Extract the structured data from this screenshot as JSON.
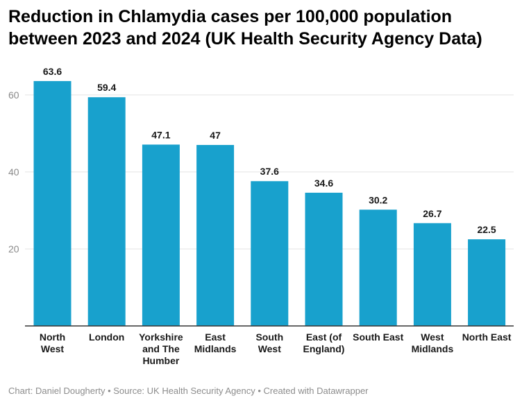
{
  "chart_data": {
    "type": "bar",
    "title": "Reduction in Chlamydia cases per 100,000 population between 2023 and 2024 (UK Health Security Agency Data)",
    "categories": [
      [
        "North",
        "West"
      ],
      [
        "London"
      ],
      [
        "Yorkshire",
        "and The",
        "Humber"
      ],
      [
        "East",
        "Midlands"
      ],
      [
        "South",
        "West"
      ],
      [
        "East (of",
        "England)"
      ],
      [
        "South East"
      ],
      [
        "West",
        "Midlands"
      ],
      [
        "North East"
      ]
    ],
    "values": [
      63.6,
      59.4,
      47.1,
      47,
      37.6,
      34.6,
      30.2,
      26.7,
      22.5
    ],
    "value_labels": [
      "63.6",
      "59.4",
      "47.1",
      "47",
      "37.6",
      "34.6",
      "30.2",
      "26.7",
      "22.5"
    ],
    "yticks": [
      20,
      40,
      60
    ],
    "ytick_labels": [
      "20",
      "40",
      "60"
    ],
    "ylim": [
      0,
      67
    ],
    "grid": true,
    "bar_color": "#18a1cd",
    "xlabel": "",
    "ylabel": ""
  },
  "footer": {
    "text": "Chart: Daniel Dougherty • Source: UK Health Security Agency • Created with Datawrapper"
  }
}
